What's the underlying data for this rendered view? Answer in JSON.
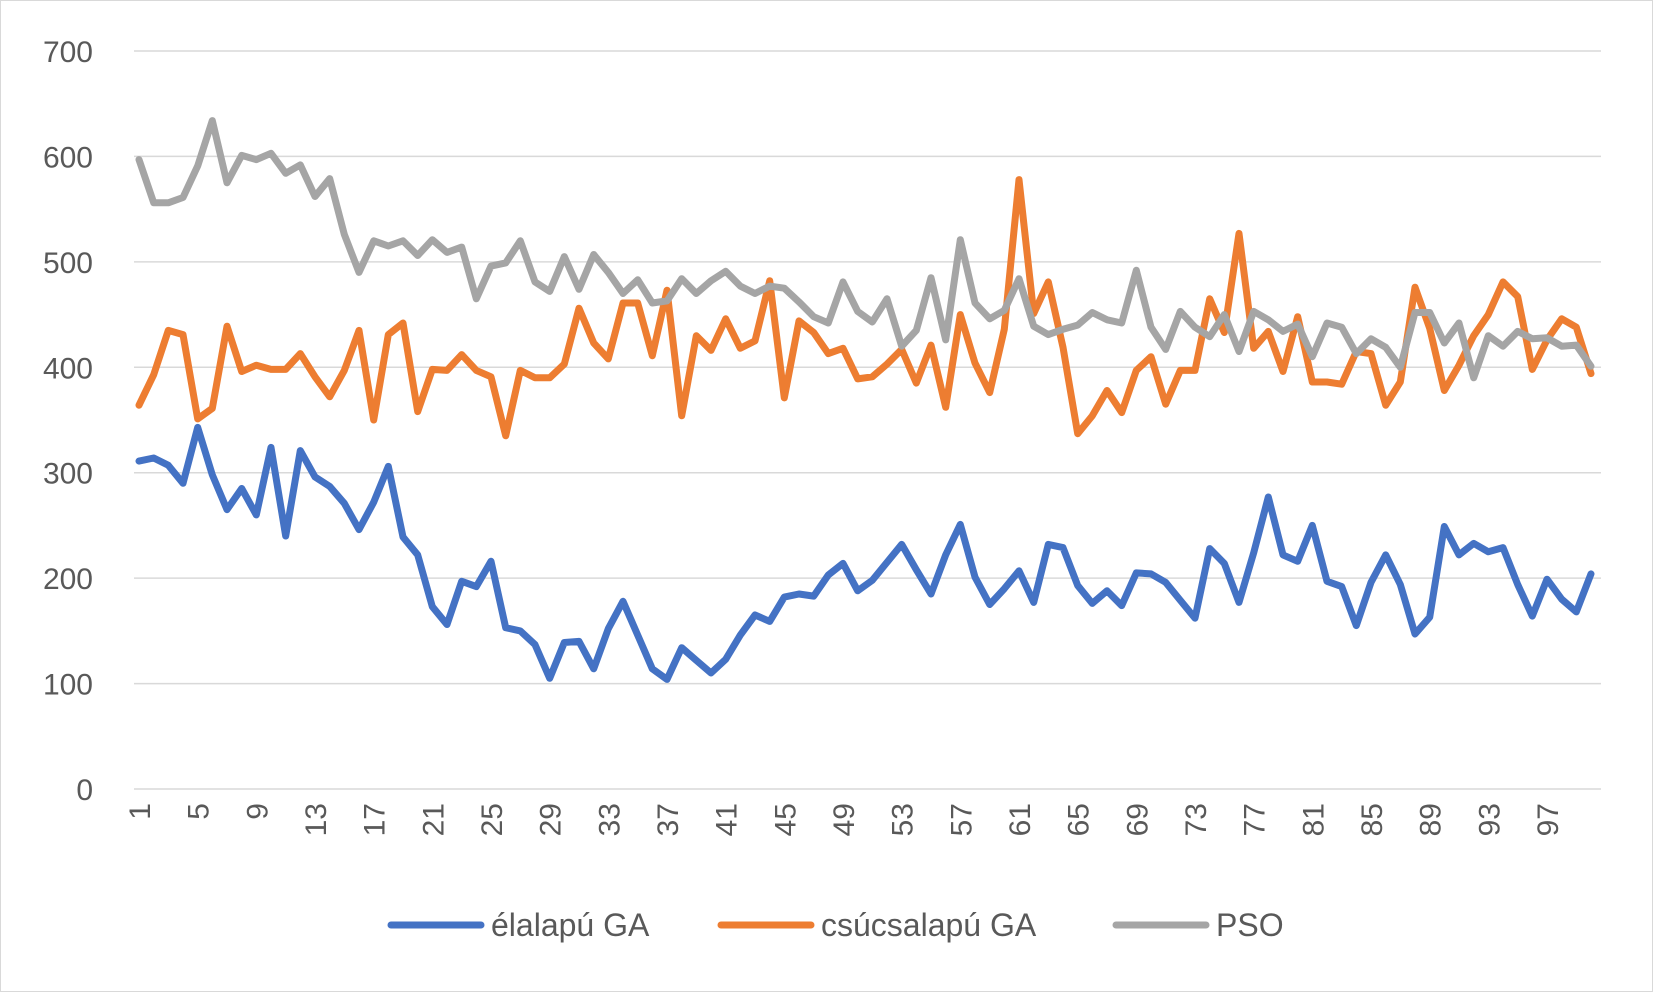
{
  "chart_data": {
    "type": "line",
    "title": "",
    "xlabel": "",
    "ylabel": "",
    "ylim": [
      0,
      700
    ],
    "yticks": [
      0,
      100,
      200,
      300,
      400,
      500,
      600,
      700
    ],
    "x": [
      1,
      2,
      3,
      4,
      5,
      6,
      7,
      8,
      9,
      10,
      11,
      12,
      13,
      14,
      15,
      16,
      17,
      18,
      19,
      20,
      21,
      22,
      23,
      24,
      25,
      26,
      27,
      28,
      29,
      30,
      31,
      32,
      33,
      34,
      35,
      36,
      37,
      38,
      39,
      40,
      41,
      42,
      43,
      44,
      45,
      46,
      47,
      48,
      49,
      50,
      51,
      52,
      53,
      54,
      55,
      56,
      57,
      58,
      59,
      60,
      61,
      62,
      63,
      64,
      65,
      66,
      67,
      68,
      69,
      70,
      71,
      72,
      73,
      74,
      75,
      76,
      77,
      78,
      79,
      80,
      81,
      82,
      83,
      84,
      85,
      86,
      87,
      88,
      89,
      90,
      91,
      92,
      93,
      94,
      95,
      96,
      97,
      98,
      99,
      100
    ],
    "xticklabels": [
      "1",
      "5",
      "9",
      "13",
      "17",
      "21",
      "25",
      "29",
      "33",
      "37",
      "41",
      "45",
      "49",
      "53",
      "57",
      "61",
      "65",
      "69",
      "73",
      "77",
      "81",
      "85",
      "89",
      "93",
      "97"
    ],
    "grid": true,
    "legend_position": "bottom",
    "series": [
      {
        "name": "élalapú GA",
        "color": "#4472C4",
        "values": [
          311,
          314,
          307,
          290,
          343,
          298,
          265,
          285,
          260,
          324,
          240,
          321,
          296,
          287,
          271,
          246,
          272,
          306,
          239,
          222,
          173,
          156,
          197,
          192,
          216,
          153,
          150,
          137,
          105,
          139,
          140,
          114,
          152,
          178,
          146,
          114,
          104,
          134,
          122,
          110,
          123,
          146,
          165,
          159,
          182,
          185,
          183,
          203,
          214,
          188,
          198,
          215,
          232,
          208,
          185,
          222,
          251,
          201,
          175,
          190,
          207,
          177,
          232,
          229,
          193,
          176,
          188,
          174,
          205,
          204,
          196,
          179,
          162,
          228,
          214,
          177,
          224,
          277,
          222,
          216,
          250,
          197,
          192,
          155,
          196,
          222,
          194,
          147,
          163,
          249,
          222,
          233,
          225,
          229,
          194,
          164,
          199,
          180,
          168,
          204
        ]
      },
      {
        "name": "csúcsalapú GA",
        "color": "#ED7D31",
        "values": [
          364,
          393,
          435,
          431,
          351,
          361,
          439,
          396,
          402,
          398,
          398,
          413,
          391,
          372,
          397,
          435,
          350,
          431,
          442,
          358,
          398,
          397,
          412,
          397,
          391,
          335,
          397,
          390,
          390,
          403,
          456,
          423,
          408,
          461,
          461,
          411,
          473,
          354,
          430,
          416,
          446,
          418,
          425,
          482,
          371,
          444,
          433,
          413,
          418,
          389,
          391,
          403,
          417,
          385,
          421,
          362,
          450,
          404,
          376,
          436,
          578,
          451,
          481,
          419,
          337,
          354,
          378,
          357,
          397,
          410,
          365,
          397,
          397,
          465,
          433,
          527,
          418,
          434,
          396,
          448,
          386,
          386,
          384,
          415,
          413,
          364,
          386,
          476,
          437,
          378,
          402,
          430,
          450,
          481,
          467,
          398,
          426,
          446,
          438,
          394
        ]
      },
      {
        "name": "PSO",
        "color": "#A5A5A5",
        "values": [
          597,
          556,
          556,
          561,
          591,
          634,
          575,
          601,
          597,
          603,
          584,
          592,
          562,
          579,
          526,
          490,
          520,
          515,
          520,
          506,
          521,
          509,
          514,
          465,
          496,
          499,
          520,
          481,
          472,
          505,
          474,
          507,
          490,
          470,
          483,
          461,
          463,
          484,
          470,
          482,
          491,
          477,
          470,
          477,
          475,
          462,
          448,
          442,
          481,
          453,
          443,
          465,
          420,
          435,
          485,
          426,
          521,
          461,
          446,
          454,
          484,
          439,
          431,
          436,
          440,
          452,
          445,
          442,
          492,
          438,
          417,
          453,
          438,
          429,
          450,
          415,
          453,
          445,
          434,
          441,
          410,
          442,
          438,
          413,
          427,
          419,
          400,
          452,
          452,
          423,
          442,
          390,
          430,
          420,
          434,
          427,
          428,
          420,
          421,
          401
        ]
      }
    ]
  }
}
